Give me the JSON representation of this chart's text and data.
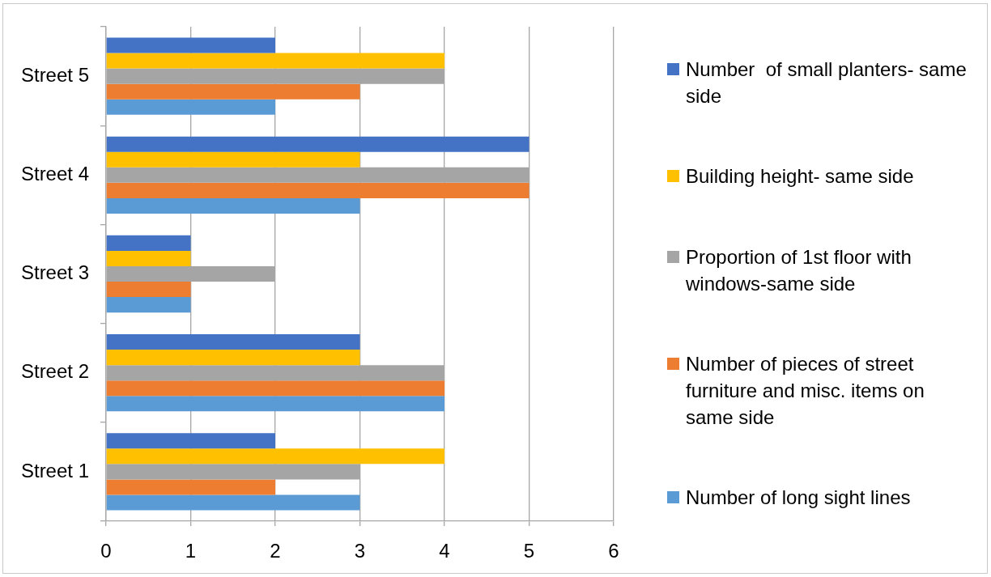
{
  "chart_data": {
    "type": "bar",
    "orientation": "horizontal",
    "categories": [
      "Street 5",
      "Street 4",
      "Street 3",
      "Street 2",
      "Street 1"
    ],
    "series": [
      {
        "name": "Number  of small planters- same side",
        "color": "#4472c4",
        "values": [
          2,
          5,
          1,
          3,
          2
        ]
      },
      {
        "name": "Building height- same side",
        "color": "#ffc000",
        "values": [
          4,
          3,
          1,
          3,
          4
        ]
      },
      {
        "name": "Proportion of 1st floor with windows-same side",
        "color": "#a5a5a5",
        "values": [
          4,
          5,
          2,
          4,
          3
        ]
      },
      {
        "name": "Number of pieces of street furniture and misc. items on same side",
        "color": "#ed7d31",
        "values": [
          3,
          5,
          1,
          4,
          2
        ]
      },
      {
        "name": "Number of long sight lines",
        "color": "#5b9bd5",
        "values": [
          2,
          3,
          1,
          4,
          3
        ]
      }
    ],
    "xlim": [
      0,
      6
    ],
    "xticks": [
      0,
      1,
      2,
      3,
      4,
      5,
      6
    ],
    "grid": "x",
    "legend": "right"
  }
}
